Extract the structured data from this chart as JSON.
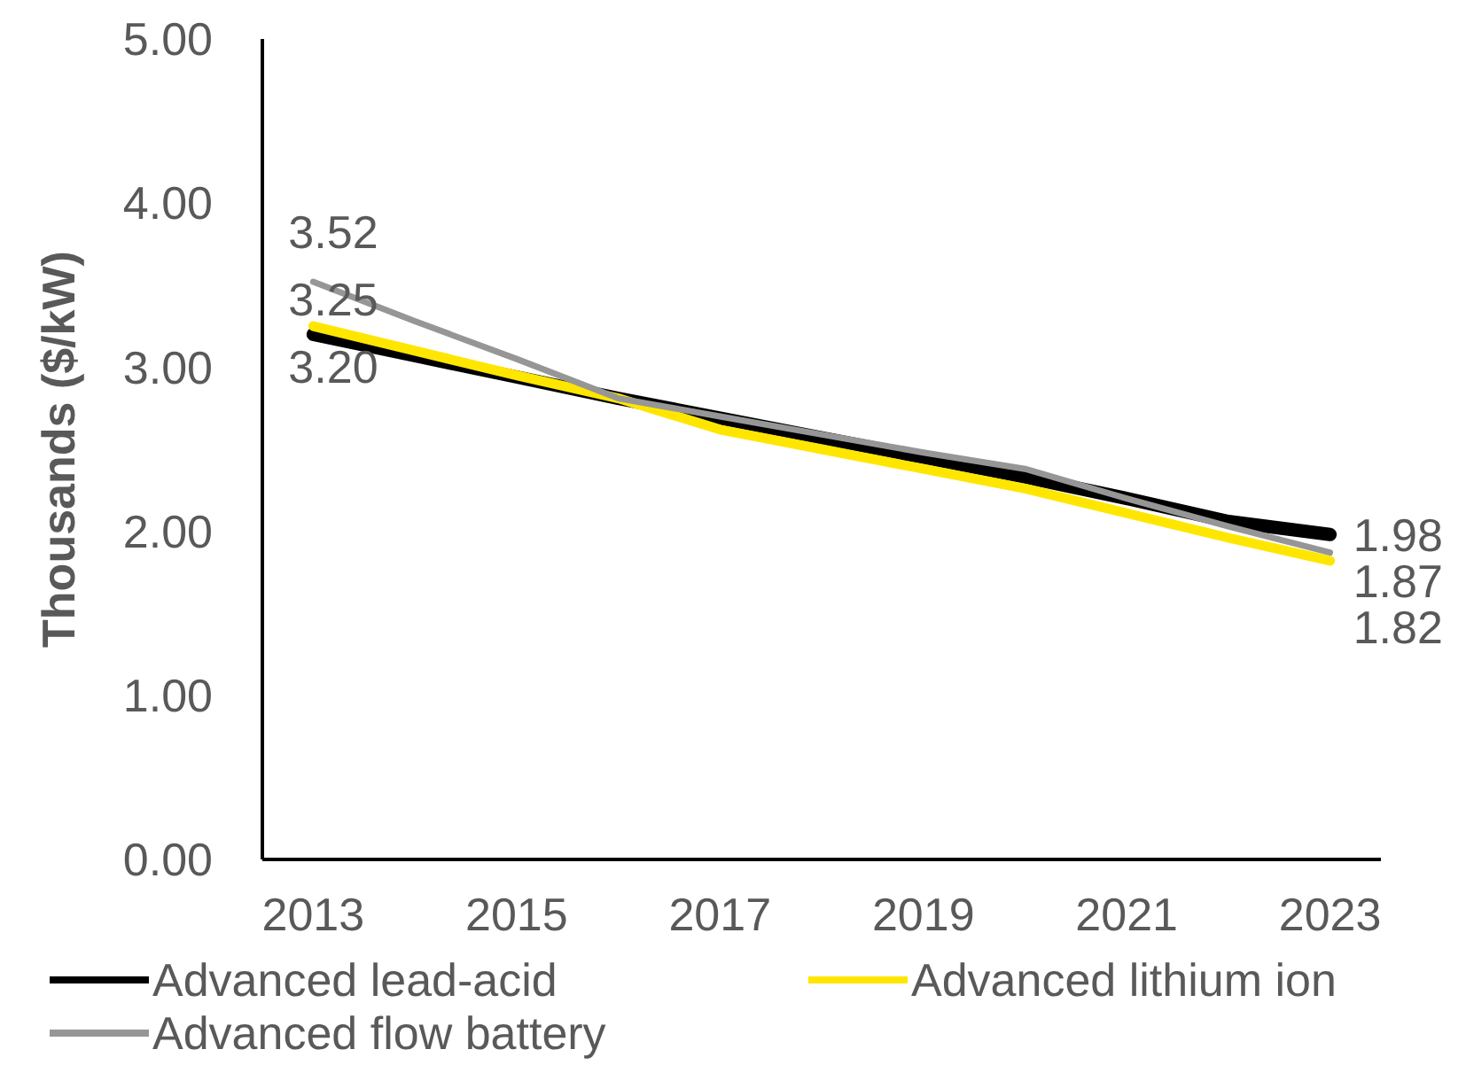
{
  "chart_data": {
    "type": "line",
    "ylabel": "Thousands ($/kW)",
    "x": [
      2013,
      2014,
      2015,
      2016,
      2017,
      2018,
      2019,
      2020,
      2021,
      2022,
      2023
    ],
    "xlim": [
      2012.5,
      2023.5
    ],
    "xticks": [
      2013,
      2015,
      2017,
      2019,
      2021,
      2023
    ],
    "ylim": [
      0,
      5
    ],
    "yticks": [
      {
        "value": 0,
        "label": "0.00"
      },
      {
        "value": 1,
        "label": "1.00"
      },
      {
        "value": 2,
        "label": "2.00"
      },
      {
        "value": 3,
        "label": "3.00"
      },
      {
        "value": 4,
        "label": "4.00"
      },
      {
        "value": 5,
        "label": "5.00"
      }
    ],
    "grid": false,
    "legend": "bottom",
    "marker": "none",
    "line_style": "solid",
    "series": [
      {
        "name": "Advanced lead-acid",
        "color": "#000000",
        "values": [
          3.2,
          3.07,
          2.94,
          2.81,
          2.69,
          2.57,
          2.45,
          2.33,
          2.2,
          2.06,
          1.98
        ],
        "value_labels": [
          "3.20",
          null,
          null,
          null,
          null,
          null,
          null,
          null,
          null,
          null,
          "1.98"
        ]
      },
      {
        "name": "Advanced lithium ion",
        "color": "#ffe600",
        "values": [
          3.25,
          3.1,
          2.95,
          2.81,
          2.62,
          2.5,
          2.38,
          2.26,
          2.11,
          1.96,
          1.82
        ],
        "value_labels": [
          "3.25",
          null,
          null,
          null,
          null,
          null,
          null,
          null,
          null,
          null,
          "1.82"
        ]
      },
      {
        "name": "Advanced flow battery",
        "color": "#969696",
        "values": [
          3.52,
          3.28,
          3.05,
          2.81,
          2.7,
          2.59,
          2.48,
          2.38,
          2.2,
          2.03,
          1.87
        ],
        "value_labels": [
          "3.52",
          null,
          null,
          null,
          null,
          null,
          null,
          null,
          null,
          null,
          "1.87"
        ]
      }
    ]
  }
}
